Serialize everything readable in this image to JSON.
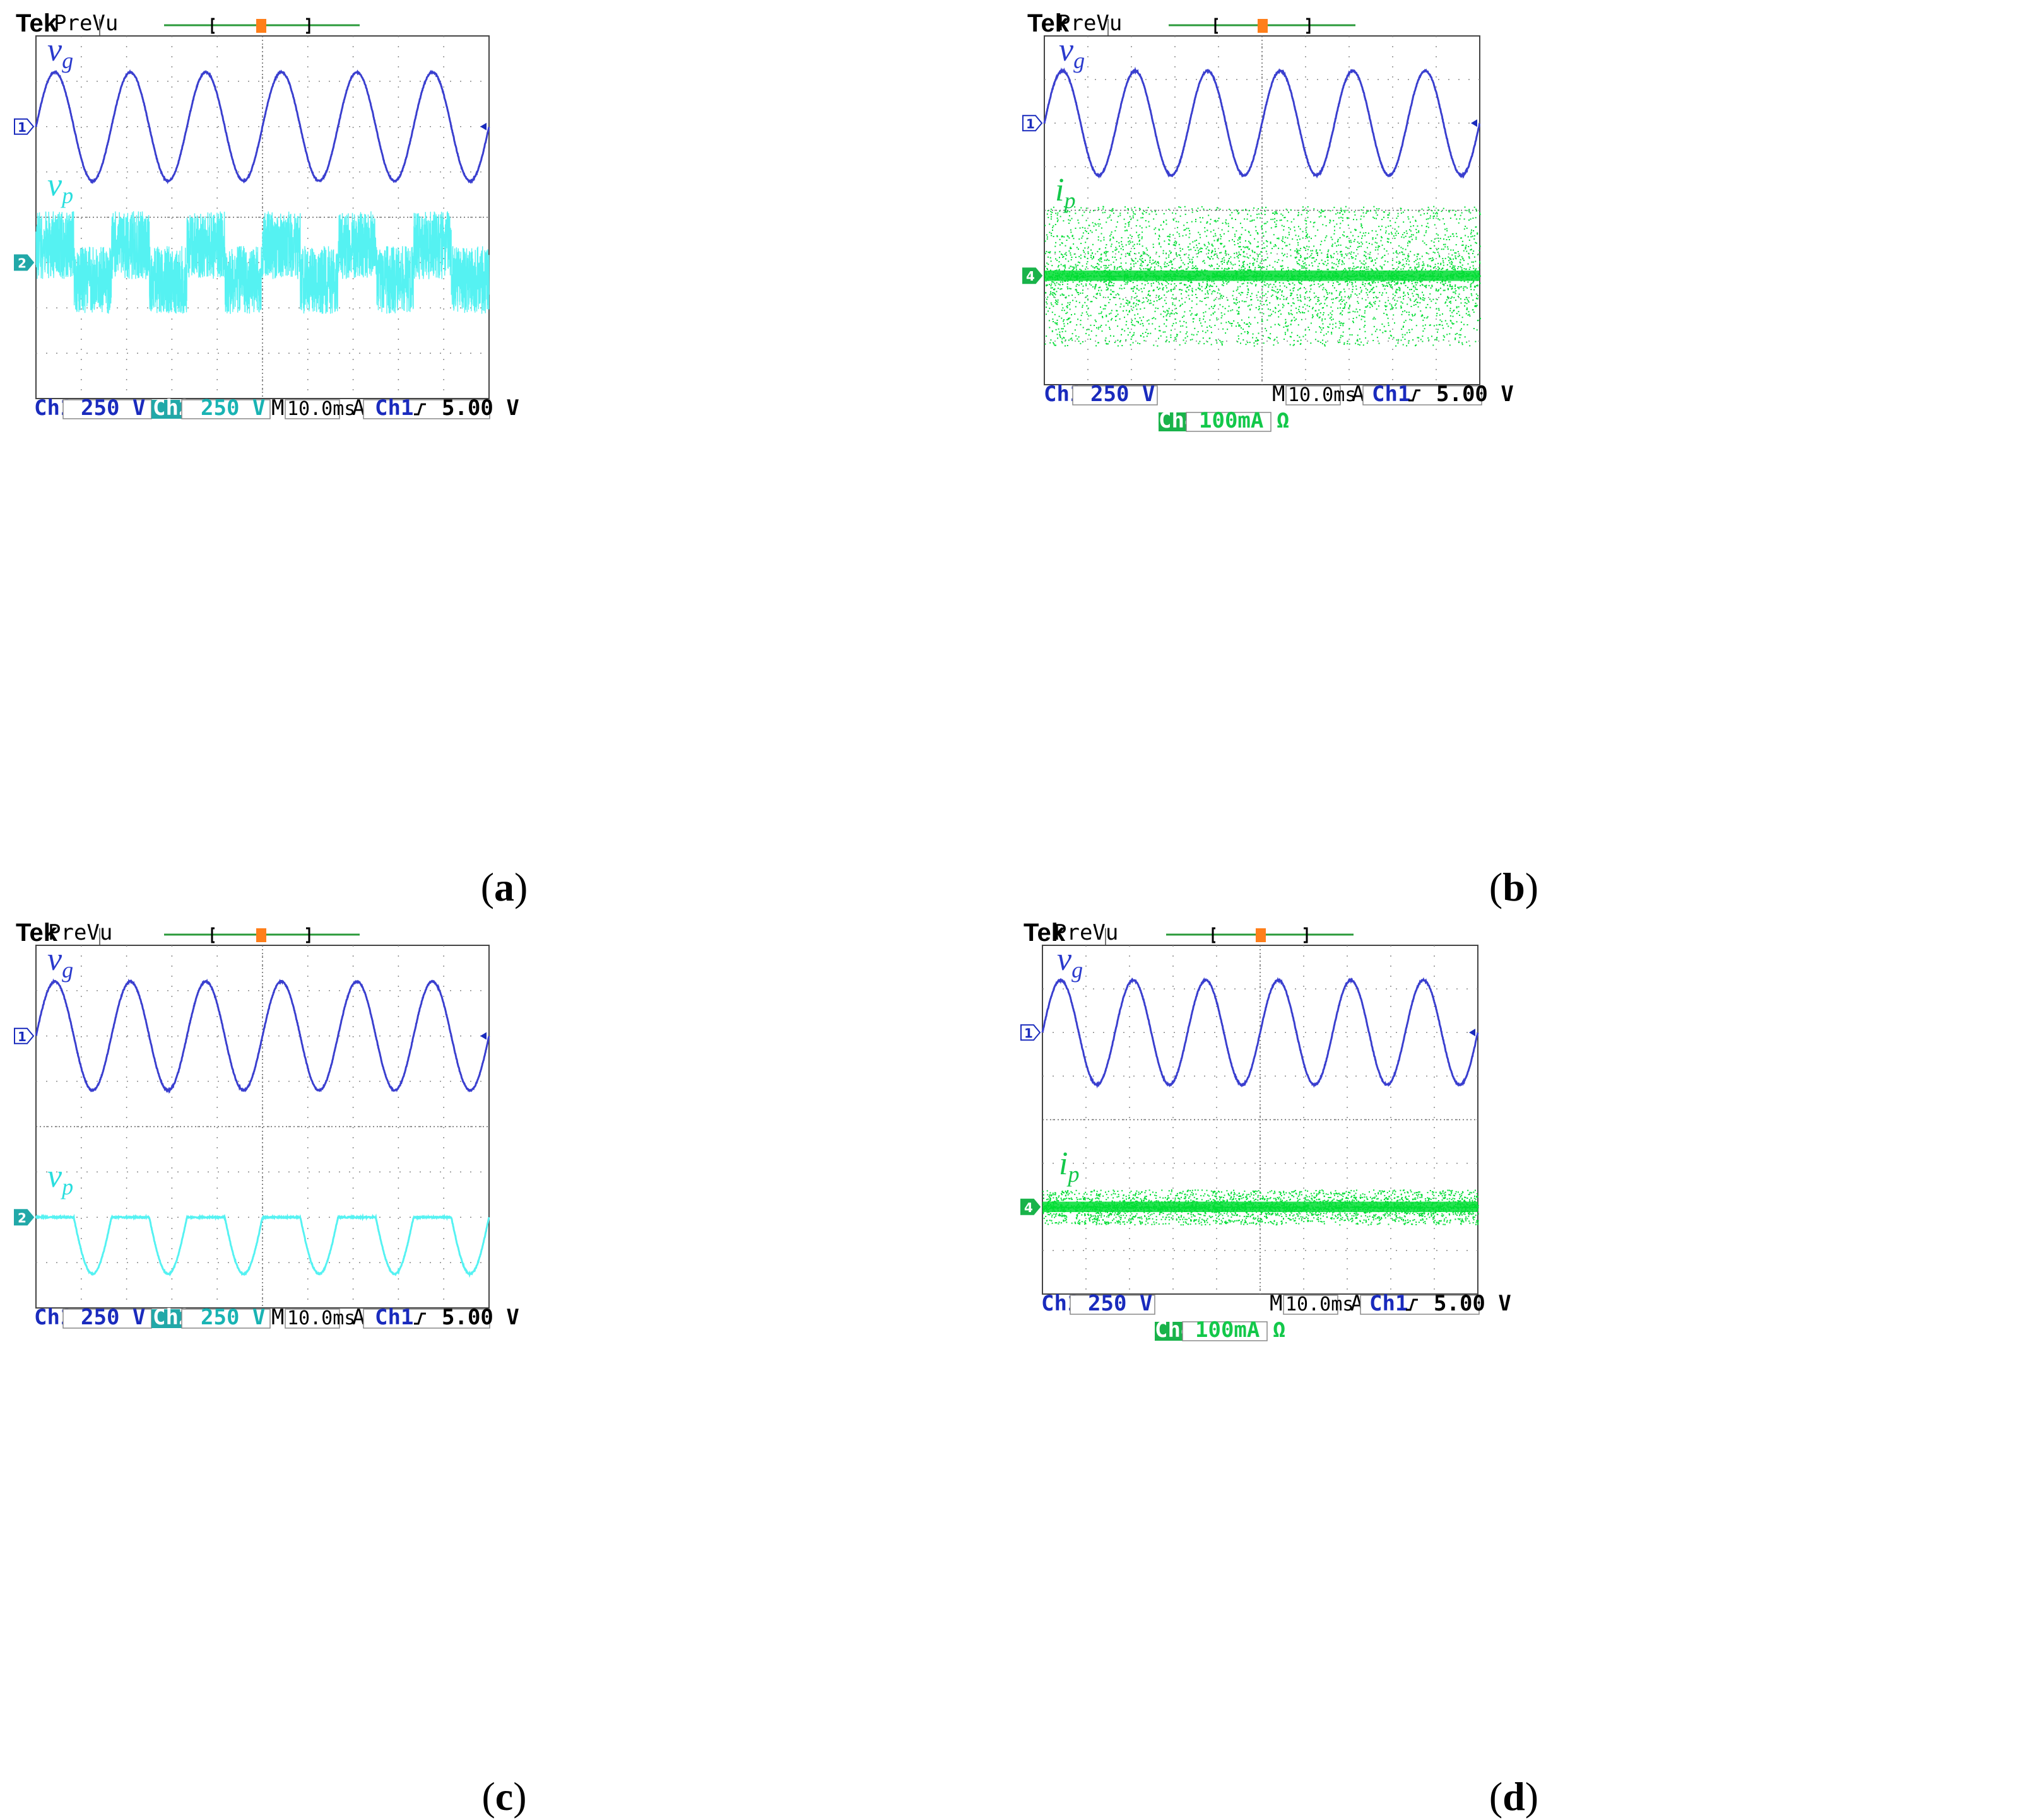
{
  "colors": {
    "ch1": "#3a3fcf",
    "ch2": "#55f2f2",
    "ch4": "#00dd33",
    "grid": "#888888",
    "trigger": "#ff7f1a",
    "label_ch1": "#1a2bbd",
    "label_ch2": "#19b3b3",
    "label_ch4": "#13c84a"
  },
  "panels": [
    {
      "id": "a",
      "caption": "a",
      "header": {
        "brand": "Tek",
        "mode": "PreVu",
        "trigger_icon": "T"
      },
      "traces": [
        {
          "channel": "1",
          "label": "v",
          "sub": "g",
          "kind": "sine",
          "color_key": "ch1"
        },
        {
          "channel": "2",
          "label": "v",
          "sub": "p",
          "kind": "noisy-square",
          "color_key": "ch2"
        }
      ],
      "status": {
        "ch1_name": "Ch1",
        "ch1_scale": "250 V",
        "ch2_name": "Ch2",
        "ch2_scale": "250 V",
        "timebase_prefix": "M",
        "timebase": "10.0ms",
        "trig_prefix": "A",
        "trig_source": "Ch1",
        "trig_slope": "rising-edge-icon",
        "trig_level": "5.00 V"
      }
    },
    {
      "id": "b",
      "caption": "b",
      "header": {
        "brand": "Tek",
        "mode": "PreVu",
        "trigger_icon": "T"
      },
      "traces": [
        {
          "channel": "1",
          "label": "v",
          "sub": "g",
          "kind": "sine",
          "color_key": "ch1"
        },
        {
          "channel": "4",
          "label": "i",
          "sub": "p",
          "kind": "wide-noise",
          "color_key": "ch4"
        }
      ],
      "status": {
        "ch1_name": "Ch1",
        "ch1_scale": "250 V",
        "ch4_name": "Ch4",
        "ch4_scale": "100mA Ω",
        "timebase_prefix": "M",
        "timebase": "10.0ms",
        "trig_prefix": "A",
        "trig_source": "Ch1",
        "trig_slope": "rising-edge-icon",
        "trig_level": "5.00 V"
      }
    },
    {
      "id": "c",
      "caption": "c",
      "header": {
        "brand": "Tek",
        "mode": "PreVu",
        "trigger_icon": "T"
      },
      "traces": [
        {
          "channel": "1",
          "label": "v",
          "sub": "g",
          "kind": "sine",
          "color_key": "ch1"
        },
        {
          "channel": "2",
          "label": "v",
          "sub": "p",
          "kind": "clipped-sine",
          "color_key": "ch2"
        }
      ],
      "status": {
        "ch1_name": "Ch1",
        "ch1_scale": "250 V",
        "ch2_name": "Ch2",
        "ch2_scale": "250 V",
        "timebase_prefix": "M",
        "timebase": "10.0ms",
        "trig_prefix": "A",
        "trig_source": "Ch1",
        "trig_slope": "rising-edge-icon",
        "trig_level": "5.00 V"
      }
    },
    {
      "id": "d",
      "caption": "d",
      "header": {
        "brand": "Tek",
        "mode": "PreVu",
        "trigger_icon": "T"
      },
      "traces": [
        {
          "channel": "1",
          "label": "v",
          "sub": "g",
          "kind": "sine",
          "color_key": "ch1"
        },
        {
          "channel": "4",
          "label": "i",
          "sub": "p",
          "kind": "narrow-noise",
          "color_key": "ch4"
        }
      ],
      "status": {
        "ch1_name": "Ch1",
        "ch1_scale": "250 V",
        "ch4_name": "Ch4",
        "ch4_scale": "100mA Ω",
        "timebase_prefix": "M",
        "timebase": "10.0ms",
        "trig_prefix": "A",
        "trig_source": "Ch1",
        "trig_slope": "rising-edge-icon",
        "trig_level": "5.00 V"
      }
    }
  ],
  "chart_data": [
    {
      "type": "line",
      "panel": "a",
      "x_divisions": 10,
      "y_divisions": 8,
      "series": [
        {
          "name": "vg",
          "channel": 1,
          "shape": "sine",
          "cycles_on_screen": 6,
          "amplitude_div": 1.2
        },
        {
          "name": "vp",
          "channel": 2,
          "shape": "square with high-frequency noise, in phase with vg",
          "cycles_on_screen": 6,
          "amplitude_div": 0.85,
          "noise_div": 1.5
        }
      ],
      "xlabel": "",
      "ylabel": ""
    },
    {
      "type": "line",
      "panel": "b",
      "x_divisions": 10,
      "y_divisions": 8,
      "series": [
        {
          "name": "vg",
          "channel": 1,
          "shape": "sine",
          "cycles_on_screen": 6,
          "amplitude_div": 1.2
        },
        {
          "name": "ip",
          "channel": 4,
          "shape": "broadband noise around zero",
          "noise_div": 2.0
        }
      ],
      "xlabel": "",
      "ylabel": ""
    },
    {
      "type": "line",
      "panel": "c",
      "x_divisions": 10,
      "y_divisions": 8,
      "series": [
        {
          "name": "vg",
          "channel": 1,
          "shape": "sine",
          "cycles_on_screen": 6,
          "amplitude_div": 1.2
        },
        {
          "name": "vp",
          "channel": 2,
          "shape": "negative half-sine, flat at zero otherwise",
          "cycles_on_screen": 6,
          "amplitude_div": 1.25
        }
      ],
      "xlabel": "",
      "ylabel": ""
    },
    {
      "type": "line",
      "panel": "d",
      "x_divisions": 10,
      "y_divisions": 8,
      "series": [
        {
          "name": "vg",
          "channel": 1,
          "shape": "sine",
          "cycles_on_screen": 6,
          "amplitude_div": 1.2
        },
        {
          "name": "ip",
          "channel": 4,
          "shape": "small noise around zero",
          "noise_div": 0.5
        }
      ],
      "xlabel": "",
      "ylabel": ""
    }
  ]
}
